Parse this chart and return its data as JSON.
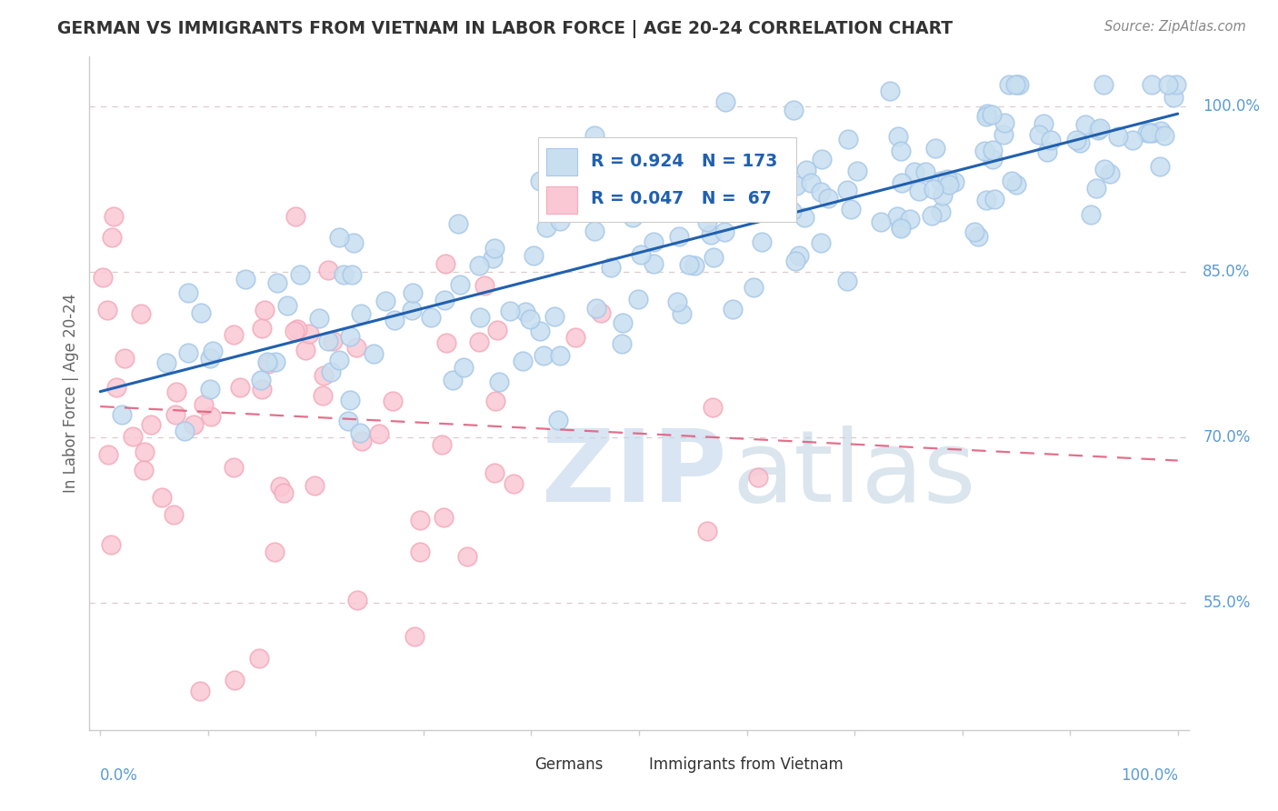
{
  "title": "GERMAN VS IMMIGRANTS FROM VIETNAM IN LABOR FORCE | AGE 20-24 CORRELATION CHART",
  "source": "Source: ZipAtlas.com",
  "ylabel": "In Labor Force | Age 20-24",
  "y_ticks": [
    "55.0%",
    "70.0%",
    "85.0%",
    "100.0%"
  ],
  "y_tick_vals": [
    0.55,
    0.7,
    0.85,
    1.0
  ],
  "legend_blue_R": "0.924",
  "legend_blue_N": "173",
  "legend_pink_R": "0.047",
  "legend_pink_N": " 67",
  "blue_color": "#A8C8E8",
  "pink_color": "#F4AABB",
  "blue_fill": "#C8DFF0",
  "pink_fill": "#FAC8D4",
  "blue_line_color": "#2060B0",
  "pink_line_color": "#E06080",
  "grid_color": "#DDCCCC",
  "axis_line_color": "#CCCCCC",
  "background": "#ffffff",
  "title_color": "#333333",
  "axis_label_color": "#5B9BD5",
  "source_color": "#888888",
  "legend_text_color": "#2060B0",
  "bottom_legend_color": "#333333",
  "ylabel_color": "#666666"
}
